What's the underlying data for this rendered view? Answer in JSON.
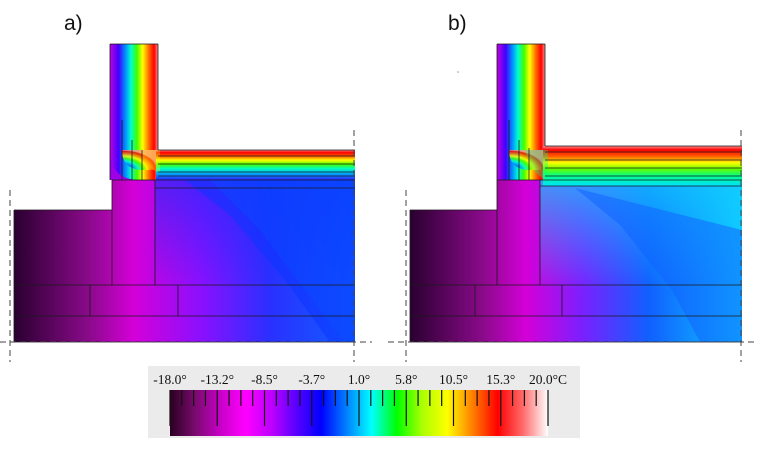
{
  "panels": [
    {
      "id": "a",
      "label": "a)"
    },
    {
      "id": "b",
      "label": "b)"
    }
  ],
  "colorbar": {
    "unit": "°C",
    "tick_labels": [
      "-18.0°",
      "-13.2°",
      "-8.5°",
      "-3.7°",
      "1.0°",
      "5.8°",
      "10.5°",
      "15.3°",
      "20.0°C"
    ],
    "min": -18.0,
    "max": 20.0,
    "stops": [
      "#2a0020",
      "#7a0a6e",
      "#c800c8",
      "#ff00ff",
      "#c000ff",
      "#5a00ff",
      "#0000ff",
      "#0080ff",
      "#00ffff",
      "#00ff00",
      "#aaff00",
      "#ffff00",
      "#ff8000",
      "#ff0000",
      "#ff6a6a",
      "#ffffff"
    ]
  }
}
